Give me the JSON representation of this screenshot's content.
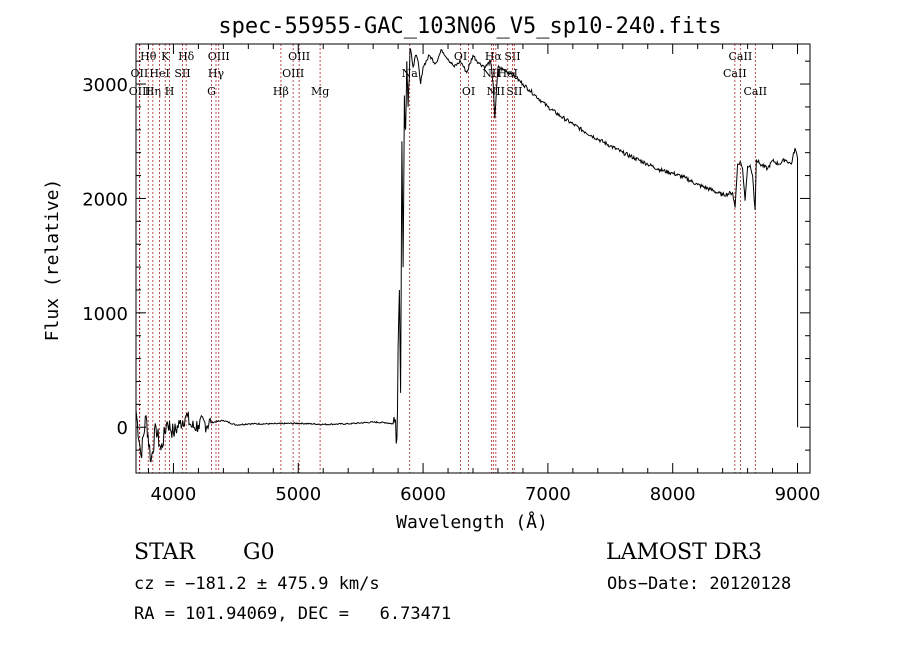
{
  "chart_data": {
    "type": "line",
    "title": "spec-55955-GAC_103N06_V5_sp10-240.fits",
    "xlabel": "Wavelength (Å)",
    "ylabel": "Flux (relative)",
    "xlim": [
      3700,
      9100
    ],
    "ylim": [
      -400,
      3350
    ],
    "xticks": [
      4000,
      5000,
      6000,
      7000,
      8000,
      9000
    ],
    "yticks": [
      0,
      1000,
      2000,
      3000
    ],
    "series": [
      {
        "name": "flux",
        "x": [
          3700,
          3740,
          3780,
          3820,
          3860,
          3900,
          3950,
          4000,
          4050,
          4100,
          4150,
          4200,
          4300,
          4400,
          4500,
          4600,
          4800,
          5000,
          5200,
          5400,
          5600,
          5700,
          5760,
          5780,
          5790,
          5800,
          5810,
          5820,
          5830,
          5840,
          5850,
          5860,
          5870,
          5880,
          5890,
          5900,
          5920,
          5940,
          5960,
          5980,
          6000,
          6050,
          6100,
          6150,
          6200,
          6250,
          6300,
          6350,
          6400,
          6450,
          6500,
          6540,
          6562,
          6575,
          6600,
          6650,
          6700,
          6750,
          6800,
          6850,
          6900,
          6950,
          7000,
          7100,
          7200,
          7300,
          7400,
          7500,
          7600,
          7700,
          7800,
          7900,
          8000,
          8100,
          8200,
          8300,
          8400,
          8480,
          8500,
          8520,
          8540,
          8560,
          8580,
          8600,
          8620,
          8640,
          8660,
          8670,
          8700,
          8760,
          8800,
          8850,
          8900,
          8950,
          8980,
          9000,
          9001
        ],
        "values": [
          150,
          -250,
          100,
          -300,
          0,
          -200,
          50,
          -50,
          30,
          100,
          0,
          20,
          40,
          60,
          20,
          30,
          30,
          35,
          25,
          30,
          45,
          40,
          30,
          60,
          -100,
          700,
          1200,
          300,
          2500,
          1400,
          2900,
          2600,
          3200,
          2800,
          3050,
          3300,
          3150,
          3250,
          3200,
          3000,
          3150,
          3250,
          3180,
          3300,
          3220,
          3150,
          3200,
          3100,
          3250,
          3180,
          3150,
          3200,
          3000,
          2700,
          3150,
          3120,
          3100,
          3050,
          3000,
          2950,
          2900,
          2850,
          2800,
          2720,
          2650,
          2580,
          2520,
          2460,
          2400,
          2350,
          2300,
          2250,
          2220,
          2180,
          2120,
          2080,
          2030,
          2050,
          1920,
          2300,
          2320,
          2260,
          1980,
          2280,
          2290,
          2200,
          1900,
          2340,
          2300,
          2260,
          2330,
          2300,
          2340,
          2300,
          2440,
          2350,
          0
        ]
      }
    ],
    "lines": [
      {
        "name": "Hθ",
        "x": 3798,
        "row": 0
      },
      {
        "name": "OII",
        "x": 3727,
        "row": 1
      },
      {
        "name": "OIII",
        "x": 3730,
        "row": 2
      },
      {
        "name": "K",
        "x": 3934,
        "row": 0
      },
      {
        "name": "Hη",
        "x": 3835,
        "row": 2
      },
      {
        "name": "HeI",
        "x": 3889,
        "row": 1
      },
      {
        "name": "H",
        "x": 3969,
        "row": 2
      },
      {
        "name": "SII",
        "x": 4072,
        "row": 1
      },
      {
        "name": "Hδ",
        "x": 4102,
        "row": 0
      },
      {
        "name": "OIII",
        "x": 4363,
        "row": 0
      },
      {
        "name": "Hγ",
        "x": 4341,
        "row": 1
      },
      {
        "name": "G",
        "x": 4305,
        "row": 2
      },
      {
        "name": "OIII",
        "x": 5007,
        "row": 0
      },
      {
        "name": "OIII",
        "x": 4959,
        "row": 1
      },
      {
        "name": "Hβ",
        "x": 4861,
        "row": 2
      },
      {
        "name": "Mg",
        "x": 5175,
        "row": 2
      },
      {
        "name": "Na",
        "x": 5893,
        "row": 1
      },
      {
        "name": "OI",
        "x": 6300,
        "row": 0
      },
      {
        "name": "OI",
        "x": 6364,
        "row": 2
      },
      {
        "name": "Hα",
        "x": 6563,
        "row": 0
      },
      {
        "name": "NII",
        "x": 6548,
        "row": 1
      },
      {
        "name": "NII",
        "x": 6583,
        "row": 2
      },
      {
        "name": "SII",
        "x": 6716,
        "row": 0
      },
      {
        "name": "SII",
        "x": 6731,
        "row": 2
      },
      {
        "name": "HeI",
        "x": 6678,
        "row": 1
      },
      {
        "name": "CaII",
        "x": 8542,
        "row": 0
      },
      {
        "name": "CaII",
        "x": 8498,
        "row": 1
      },
      {
        "name": "CaII",
        "x": 8662,
        "row": 2
      }
    ]
  },
  "info": {
    "object_class": "STAR",
    "subclass": "G0",
    "survey": "LAMOST DR3",
    "cz": "cz = −181.2 ± 475.9 km/s",
    "obs_date": "Obs−Date: 20120128",
    "coords": "RA = 101.94069, DEC =   6.73471"
  },
  "colors": {
    "line_marker": "#b22222",
    "spectrum": "#000000"
  }
}
